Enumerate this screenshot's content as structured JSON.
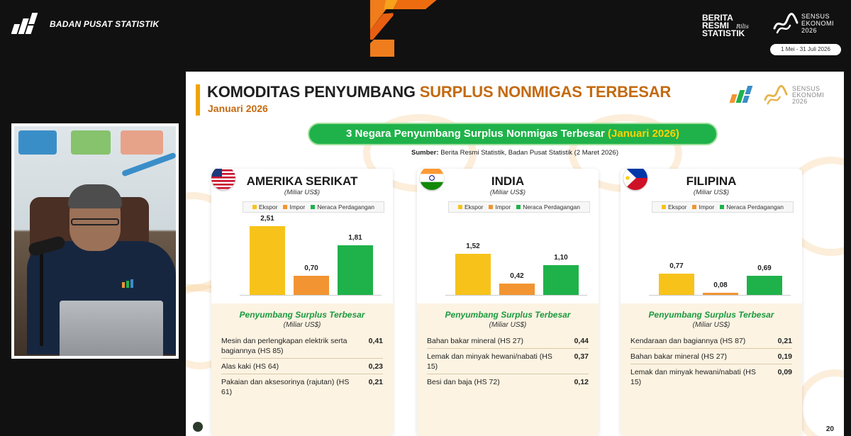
{
  "header": {
    "org_name": "BADAN PUSAT STATISTIK",
    "brs_lines": [
      "BERITA",
      "RESMI",
      "STATISTIK"
    ],
    "brs_rilis": "Rilis",
    "sensus_lines": [
      "SENSUS",
      "EKONOMI",
      "2026"
    ],
    "date_range": "1 Mei - 31 Juli 2026"
  },
  "slide": {
    "title_plain": "KOMODITAS PENYUMBANG",
    "title_highlight": "SURPLUS NONMIGAS TERBESAR",
    "subtitle": "Januari 2026",
    "logo_lines": [
      "SENSUS",
      "EKONOMI",
      "2026"
    ],
    "banner_plain": "3 Negara Penyumbang Surplus Nonmigas Terbesar",
    "banner_highlight": "(Januari 2026)",
    "source_label": "Sumber:",
    "source_text": "Berita Resmi Statistik, Badan Pusat Statistik (2 Maret 2026)",
    "page_number": "20"
  },
  "legend": {
    "items": [
      {
        "label": "Ekspor",
        "color": "#f7c31b"
      },
      {
        "label": "Impor",
        "color": "#f29432"
      },
      {
        "label": "Neraca Perdagangan",
        "color": "#1fb24a"
      }
    ]
  },
  "colors": {
    "ekspor": "#f7c31b",
    "impor": "#f29432",
    "neraca": "#1fb24a",
    "accent": "#c46a10",
    "green": "#1fb24a"
  },
  "cards": [
    {
      "country": "AMERIKA SERIKAT",
      "flag_icon": "usa-flag-icon",
      "unit": "(Miliar US$)",
      "bottom_title": "Penyumbang Surplus Terbesar",
      "bottom_unit": "(Miliar US$)",
      "commodities": [
        {
          "name": "Mesin dan perlengkapan elektrik serta bagiannya (HS 85)",
          "value": "0,41"
        },
        {
          "name": "Alas kaki (HS 64)",
          "value": "0,23"
        },
        {
          "name": "Pakaian dan aksesorinya (rajutan) (HS 61)",
          "value": "0,21"
        }
      ]
    },
    {
      "country": "INDIA",
      "flag_icon": "india-flag-icon",
      "unit": "(Miliar US$)",
      "bottom_title": "Penyumbang Surplus Terbesar",
      "bottom_unit": "(Miliar US$)",
      "commodities": [
        {
          "name": "Bahan bakar mineral (HS 27)",
          "value": "0,44"
        },
        {
          "name": "Lemak dan minyak hewani/nabati (HS 15)",
          "value": "0,37"
        },
        {
          "name": "Besi dan baja (HS 72)",
          "value": "0,12"
        }
      ]
    },
    {
      "country": "FILIPINA",
      "flag_icon": "philippines-flag-icon",
      "unit": "(Miliar US$)",
      "bottom_title": "Penyumbang Surplus Terbesar",
      "bottom_unit": "(Miliar US$)",
      "commodities": [
        {
          "name": "Kendaraan dan bagiannya (HS 87)",
          "value": "0,21"
        },
        {
          "name": "Bahan bakar mineral (HS 27)",
          "value": "0,19"
        },
        {
          "name": "Lemak dan minyak hewani/nabati (HS 15)",
          "value": "0,09"
        }
      ]
    }
  ],
  "chart_data": [
    {
      "type": "bar",
      "title": "AMERIKA SERIKAT",
      "ylabel": "(Miliar US$)",
      "categories": [
        "Ekspor",
        "Impor",
        "Neraca Perdagangan"
      ],
      "values": [
        2.51,
        0.7,
        1.81
      ],
      "labels": [
        "2,51",
        "0,70",
        "1,81"
      ],
      "ylim": [
        0,
        2.6
      ]
    },
    {
      "type": "bar",
      "title": "INDIA",
      "ylabel": "(Miliar US$)",
      "categories": [
        "Ekspor",
        "Impor",
        "Neraca Perdagangan"
      ],
      "values": [
        1.52,
        0.42,
        1.1
      ],
      "labels": [
        "1,52",
        "0,42",
        "1,10"
      ],
      "ylim": [
        0,
        2.6
      ]
    },
    {
      "type": "bar",
      "title": "FILIPINA",
      "ylabel": "(Miliar US$)",
      "categories": [
        "Ekspor",
        "Impor",
        "Neraca Perdagangan"
      ],
      "values": [
        0.77,
        0.08,
        0.69
      ],
      "labels": [
        "0,77",
        "0,08",
        "0,69"
      ],
      "ylim": [
        0,
        2.6
      ]
    }
  ]
}
